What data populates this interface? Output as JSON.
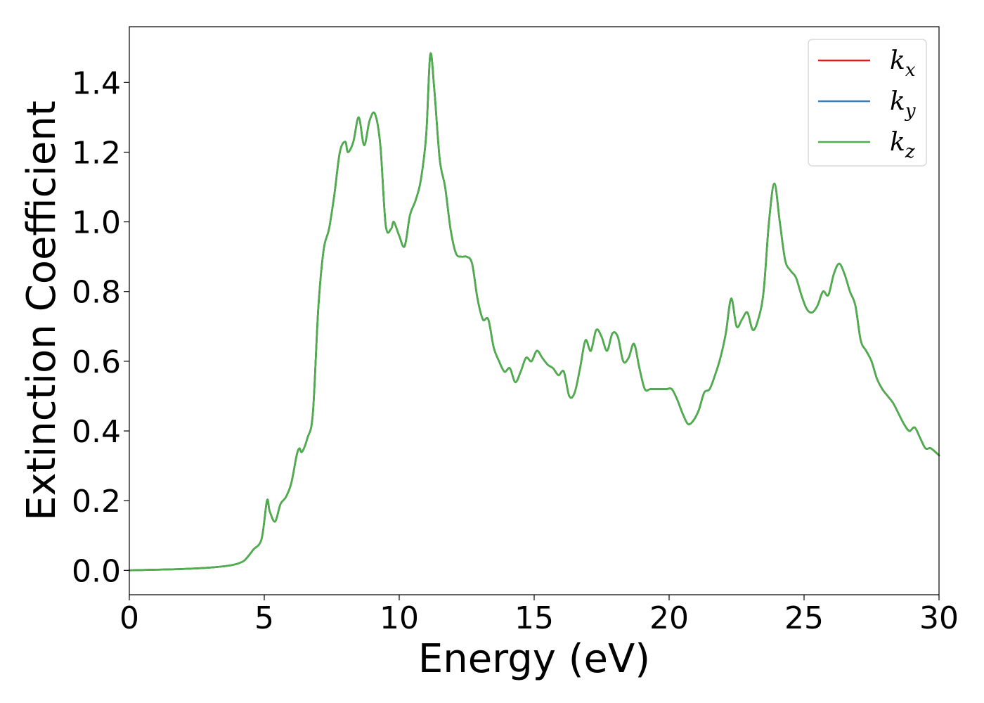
{
  "chart_data": {
    "type": "line",
    "title": "",
    "xlabel": "Energy (eV)",
    "ylabel": "Extinction Coefficient",
    "xlim": [
      0,
      30
    ],
    "ylim": [
      -0.07,
      1.56
    ],
    "xticks": [
      0,
      5,
      10,
      15,
      20,
      25,
      30
    ],
    "xtick_labels": [
      "0",
      "5",
      "10",
      "15",
      "20",
      "25",
      "30"
    ],
    "yticks": [
      0.0,
      0.2,
      0.4,
      0.6,
      0.8,
      1.0,
      1.2,
      1.4
    ],
    "ytick_labels": [
      "0.0",
      "0.2",
      "0.4",
      "0.6",
      "0.8",
      "1.0",
      "1.2",
      "1.4"
    ],
    "grid": false,
    "legend_position": "top-right",
    "x": [
      0.0,
      1.0,
      2.0,
      3.0,
      3.8,
      4.2,
      4.4,
      4.6,
      4.9,
      5.1,
      5.2,
      5.4,
      5.6,
      5.8,
      6.0,
      6.2,
      6.3,
      6.4,
      6.6,
      6.8,
      7.0,
      7.2,
      7.4,
      7.6,
      7.8,
      8.0,
      8.1,
      8.3,
      8.5,
      8.7,
      8.9,
      9.1,
      9.3,
      9.5,
      9.7,
      9.8,
      10.0,
      10.2,
      10.4,
      10.6,
      10.8,
      11.0,
      11.15,
      11.3,
      11.5,
      11.7,
      11.9,
      12.1,
      12.3,
      12.5,
      12.7,
      12.9,
      13.1,
      13.3,
      13.5,
      13.7,
      13.9,
      14.1,
      14.3,
      14.5,
      14.7,
      14.9,
      15.1,
      15.3,
      15.5,
      15.7,
      15.9,
      16.1,
      16.3,
      16.5,
      16.7,
      16.9,
      17.1,
      17.3,
      17.5,
      17.7,
      17.9,
      18.1,
      18.3,
      18.5,
      18.7,
      18.9,
      19.1,
      19.3,
      19.5,
      19.7,
      19.9,
      20.1,
      20.3,
      20.5,
      20.7,
      20.9,
      21.1,
      21.3,
      21.5,
      21.7,
      21.9,
      22.1,
      22.3,
      22.5,
      22.7,
      22.9,
      23.1,
      23.3,
      23.5,
      23.7,
      23.9,
      24.1,
      24.3,
      24.5,
      24.7,
      24.9,
      25.1,
      25.3,
      25.5,
      25.7,
      25.9,
      26.1,
      26.3,
      26.5,
      26.7,
      26.9,
      27.1,
      27.3,
      27.5,
      27.7,
      27.9,
      28.1,
      28.3,
      28.5,
      28.7,
      28.9,
      29.1,
      29.3,
      29.5,
      29.7,
      30.0
    ],
    "series": [
      {
        "name": "k_x",
        "legend_base": "k",
        "legend_sub": "x",
        "color": "#e41a1c",
        "values": [
          0.0,
          0.002,
          0.004,
          0.008,
          0.015,
          0.025,
          0.04,
          0.06,
          0.09,
          0.2,
          0.17,
          0.14,
          0.19,
          0.21,
          0.25,
          0.33,
          0.35,
          0.34,
          0.38,
          0.45,
          0.75,
          0.92,
          0.98,
          1.08,
          1.2,
          1.23,
          1.2,
          1.23,
          1.3,
          1.22,
          1.29,
          1.31,
          1.22,
          0.99,
          0.98,
          1.0,
          0.96,
          0.93,
          1.02,
          1.06,
          1.12,
          1.25,
          1.48,
          1.38,
          1.18,
          1.1,
          0.98,
          0.91,
          0.9,
          0.9,
          0.88,
          0.78,
          0.72,
          0.72,
          0.64,
          0.6,
          0.57,
          0.58,
          0.54,
          0.57,
          0.61,
          0.6,
          0.63,
          0.61,
          0.59,
          0.58,
          0.56,
          0.57,
          0.5,
          0.51,
          0.58,
          0.66,
          0.63,
          0.69,
          0.67,
          0.63,
          0.68,
          0.67,
          0.6,
          0.61,
          0.65,
          0.58,
          0.52,
          0.52,
          0.52,
          0.52,
          0.52,
          0.52,
          0.49,
          0.45,
          0.42,
          0.43,
          0.46,
          0.51,
          0.52,
          0.56,
          0.61,
          0.68,
          0.78,
          0.7,
          0.72,
          0.74,
          0.69,
          0.72,
          0.8,
          1.0,
          1.11,
          1.0,
          0.89,
          0.86,
          0.84,
          0.79,
          0.75,
          0.74,
          0.76,
          0.8,
          0.79,
          0.85,
          0.88,
          0.85,
          0.8,
          0.76,
          0.66,
          0.63,
          0.6,
          0.55,
          0.52,
          0.5,
          0.48,
          0.45,
          0.42,
          0.4,
          0.41,
          0.38,
          0.35,
          0.35,
          0.33
        ]
      },
      {
        "name": "k_y",
        "legend_base": "k",
        "legend_sub": "y",
        "color": "#377eb8",
        "values": [
          0.0,
          0.002,
          0.004,
          0.008,
          0.015,
          0.025,
          0.04,
          0.06,
          0.09,
          0.2,
          0.17,
          0.14,
          0.19,
          0.21,
          0.25,
          0.33,
          0.35,
          0.34,
          0.38,
          0.45,
          0.75,
          0.92,
          0.98,
          1.08,
          1.2,
          1.23,
          1.2,
          1.23,
          1.3,
          1.22,
          1.29,
          1.31,
          1.22,
          0.99,
          0.98,
          1.0,
          0.96,
          0.93,
          1.02,
          1.06,
          1.12,
          1.25,
          1.48,
          1.38,
          1.18,
          1.1,
          0.98,
          0.91,
          0.9,
          0.9,
          0.88,
          0.78,
          0.72,
          0.72,
          0.64,
          0.6,
          0.57,
          0.58,
          0.54,
          0.57,
          0.61,
          0.6,
          0.63,
          0.61,
          0.59,
          0.58,
          0.56,
          0.57,
          0.5,
          0.51,
          0.58,
          0.66,
          0.63,
          0.69,
          0.67,
          0.63,
          0.68,
          0.67,
          0.6,
          0.61,
          0.65,
          0.58,
          0.52,
          0.52,
          0.52,
          0.52,
          0.52,
          0.52,
          0.49,
          0.45,
          0.42,
          0.43,
          0.46,
          0.51,
          0.52,
          0.56,
          0.61,
          0.68,
          0.78,
          0.7,
          0.72,
          0.74,
          0.69,
          0.72,
          0.8,
          1.0,
          1.11,
          1.0,
          0.89,
          0.86,
          0.84,
          0.79,
          0.75,
          0.74,
          0.76,
          0.8,
          0.79,
          0.85,
          0.88,
          0.85,
          0.8,
          0.76,
          0.66,
          0.63,
          0.6,
          0.55,
          0.52,
          0.5,
          0.48,
          0.45,
          0.42,
          0.4,
          0.41,
          0.38,
          0.35,
          0.35,
          0.33
        ]
      },
      {
        "name": "k_z",
        "legend_base": "k",
        "legend_sub": "z",
        "color": "#4daf4a",
        "values": [
          0.0,
          0.002,
          0.004,
          0.008,
          0.015,
          0.025,
          0.04,
          0.06,
          0.09,
          0.2,
          0.17,
          0.14,
          0.19,
          0.21,
          0.25,
          0.33,
          0.35,
          0.34,
          0.38,
          0.45,
          0.75,
          0.92,
          0.98,
          1.08,
          1.2,
          1.23,
          1.2,
          1.23,
          1.3,
          1.22,
          1.29,
          1.31,
          1.22,
          0.99,
          0.98,
          1.0,
          0.96,
          0.93,
          1.02,
          1.06,
          1.12,
          1.25,
          1.48,
          1.38,
          1.18,
          1.1,
          0.98,
          0.91,
          0.9,
          0.9,
          0.88,
          0.78,
          0.72,
          0.72,
          0.64,
          0.6,
          0.57,
          0.58,
          0.54,
          0.57,
          0.61,
          0.6,
          0.63,
          0.61,
          0.59,
          0.58,
          0.56,
          0.57,
          0.5,
          0.51,
          0.58,
          0.66,
          0.63,
          0.69,
          0.67,
          0.63,
          0.68,
          0.67,
          0.6,
          0.61,
          0.65,
          0.58,
          0.52,
          0.52,
          0.52,
          0.52,
          0.52,
          0.52,
          0.49,
          0.45,
          0.42,
          0.43,
          0.46,
          0.51,
          0.52,
          0.56,
          0.61,
          0.68,
          0.78,
          0.7,
          0.72,
          0.74,
          0.69,
          0.72,
          0.8,
          1.0,
          1.11,
          1.0,
          0.89,
          0.86,
          0.84,
          0.79,
          0.75,
          0.74,
          0.76,
          0.8,
          0.79,
          0.85,
          0.88,
          0.85,
          0.8,
          0.76,
          0.66,
          0.63,
          0.6,
          0.55,
          0.52,
          0.5,
          0.48,
          0.45,
          0.42,
          0.4,
          0.41,
          0.38,
          0.35,
          0.35,
          0.33
        ]
      }
    ]
  }
}
